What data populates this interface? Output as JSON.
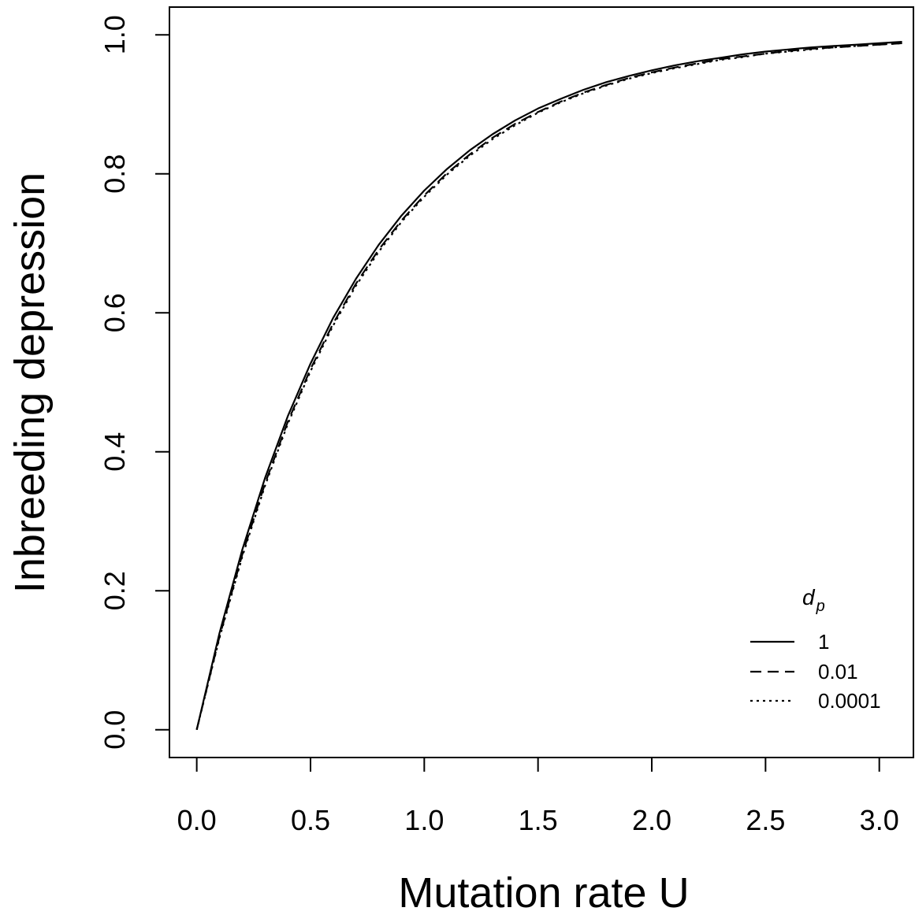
{
  "chart_data": {
    "type": "line",
    "xlabel": "Mutation rate U",
    "ylabel": "Inbreeding depression",
    "xlim": [
      -0.12,
      3.15
    ],
    "ylim": [
      -0.04,
      1.04
    ],
    "x_ticks": [
      "0.0",
      "0.5",
      "1.0",
      "1.5",
      "2.0",
      "2.5",
      "3.0"
    ],
    "y_ticks": [
      "0.0",
      "0.2",
      "0.4",
      "0.6",
      "0.8",
      "1.0"
    ],
    "grid": false,
    "legend": {
      "title": "d",
      "title_subscript": "p",
      "placement": "bottom-right",
      "entries": [
        "1",
        "0.01",
        "0.0001"
      ]
    },
    "series": [
      {
        "name": "1",
        "line_style": "solid",
        "x": [
          0,
          0.1,
          0.2,
          0.3,
          0.4,
          0.5,
          0.6,
          0.7,
          0.8,
          0.9,
          1.0,
          1.1,
          1.2,
          1.3,
          1.4,
          1.5,
          1.6,
          1.7,
          1.8,
          1.9,
          2.0,
          2.1,
          2.2,
          2.3,
          2.4,
          2.5,
          2.6,
          2.7,
          2.8,
          2.9,
          3.0,
          3.1
        ],
        "y": [
          0,
          0.139,
          0.259,
          0.362,
          0.451,
          0.527,
          0.593,
          0.649,
          0.698,
          0.74,
          0.776,
          0.807,
          0.834,
          0.857,
          0.877,
          0.894,
          0.908,
          0.921,
          0.932,
          0.941,
          0.949,
          0.956,
          0.962,
          0.967,
          0.972,
          0.976,
          0.979,
          0.982,
          0.984,
          0.986,
          0.988,
          0.99
        ]
      },
      {
        "name": "0.01",
        "line_style": "dashed",
        "x": [
          0,
          0.1,
          0.2,
          0.3,
          0.4,
          0.5,
          0.6,
          0.7,
          0.8,
          0.9,
          1.0,
          1.1,
          1.2,
          1.3,
          1.4,
          1.5,
          1.6,
          1.7,
          1.8,
          1.9,
          2.0,
          2.1,
          2.2,
          2.3,
          2.4,
          2.5,
          2.6,
          2.7,
          2.8,
          2.9,
          3.0,
          3.1
        ],
        "y": [
          0,
          0.134,
          0.252,
          0.354,
          0.443,
          0.519,
          0.585,
          0.642,
          0.691,
          0.733,
          0.769,
          0.801,
          0.828,
          0.852,
          0.872,
          0.889,
          0.904,
          0.917,
          0.928,
          0.938,
          0.946,
          0.953,
          0.959,
          0.965,
          0.969,
          0.973,
          0.977,
          0.98,
          0.982,
          0.984,
          0.986,
          0.988
        ]
      },
      {
        "name": "0.0001",
        "line_style": "dotted",
        "x": [
          0,
          0.1,
          0.2,
          0.3,
          0.4,
          0.5,
          0.6,
          0.7,
          0.8,
          0.9,
          1.0,
          1.1,
          1.2,
          1.3,
          1.4,
          1.5,
          1.6,
          1.7,
          1.8,
          1.9,
          2.0,
          2.1,
          2.2,
          2.3,
          2.4,
          2.5,
          2.6,
          2.7,
          2.8,
          2.9,
          3.0,
          3.1
        ],
        "y": [
          0,
          0.132,
          0.249,
          0.351,
          0.44,
          0.516,
          0.582,
          0.639,
          0.688,
          0.731,
          0.767,
          0.799,
          0.826,
          0.85,
          0.87,
          0.888,
          0.903,
          0.916,
          0.927,
          0.937,
          0.945,
          0.952,
          0.958,
          0.964,
          0.968,
          0.973,
          0.976,
          0.979,
          0.982,
          0.984,
          0.986,
          0.988
        ]
      }
    ]
  }
}
